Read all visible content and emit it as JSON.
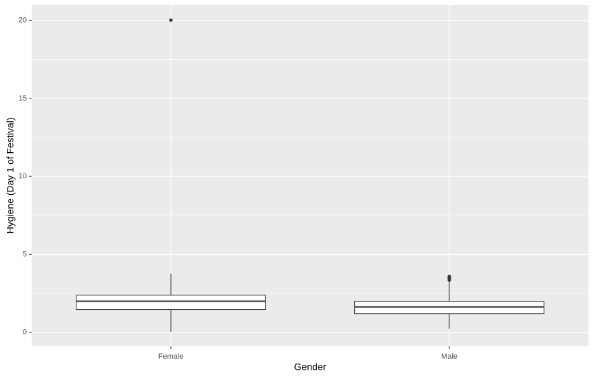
{
  "chart_data": {
    "type": "boxplot",
    "xlabel": "Gender",
    "ylabel": "Hygiene (Day 1 of Festival)",
    "categories": [
      "Female",
      "Male"
    ],
    "boxes": [
      {
        "min": 0.02,
        "q1": 1.46,
        "median": 1.99,
        "q3": 2.38,
        "max": 3.75,
        "outliers": [
          20.02
        ]
      },
      {
        "min": 0.22,
        "q1": 1.19,
        "median": 1.63,
        "q3": 1.99,
        "max": 3.3,
        "outliers": [
          3.35,
          3.44,
          3.5,
          3.58
        ]
      }
    ],
    "ylim": [
      -0.9,
      21.0
    ],
    "yticks": [
      0,
      5,
      10,
      15,
      20
    ],
    "minor_yticks": [
      2.5,
      7.5,
      12.5,
      17.5
    ],
    "grid": true,
    "color": "#ffffff"
  }
}
